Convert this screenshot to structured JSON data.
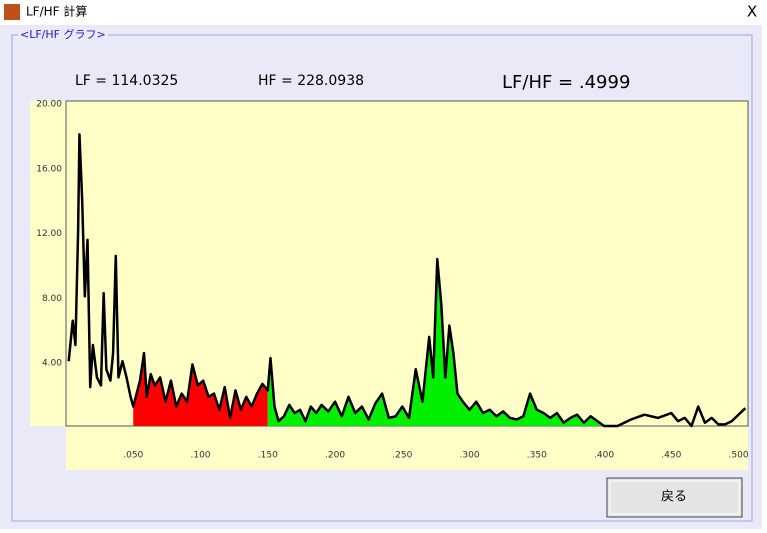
{
  "window": {
    "title": "LF/HF 計算",
    "close": "X"
  },
  "group_label": "<LF/HF グラフ>",
  "lf_text": "LF = 114.0325",
  "hf_text": "HF = 228.0938",
  "ratio_text": "LF/HF = .4999",
  "back_button": "戻る",
  "chart_data": {
    "type": "area",
    "x": [
      0.002,
      0.005,
      0.007,
      0.009,
      0.01,
      0.012,
      0.014,
      0.016,
      0.018,
      0.02,
      0.023,
      0.026,
      0.028,
      0.03,
      0.033,
      0.035,
      0.037,
      0.039,
      0.042,
      0.045,
      0.048,
      0.05,
      0.055,
      0.058,
      0.06,
      0.063,
      0.066,
      0.07,
      0.074,
      0.078,
      0.082,
      0.086,
      0.09,
      0.094,
      0.098,
      0.102,
      0.106,
      0.11,
      0.114,
      0.118,
      0.122,
      0.126,
      0.13,
      0.134,
      0.138,
      0.142,
      0.146,
      0.15,
      0.152,
      0.155,
      0.158,
      0.162,
      0.166,
      0.17,
      0.174,
      0.178,
      0.182,
      0.186,
      0.19,
      0.195,
      0.2,
      0.205,
      0.21,
      0.215,
      0.22,
      0.225,
      0.23,
      0.235,
      0.24,
      0.245,
      0.25,
      0.255,
      0.26,
      0.265,
      0.27,
      0.273,
      0.276,
      0.279,
      0.282,
      0.285,
      0.288,
      0.291,
      0.295,
      0.3,
      0.305,
      0.31,
      0.315,
      0.32,
      0.325,
      0.33,
      0.335,
      0.34,
      0.345,
      0.35,
      0.355,
      0.36,
      0.365,
      0.37,
      0.375,
      0.38,
      0.385,
      0.39,
      0.395,
      0.4,
      0.41,
      0.42,
      0.43,
      0.44,
      0.45,
      0.455,
      0.46,
      0.465,
      0.47,
      0.475,
      0.48,
      0.485,
      0.49,
      0.495,
      0.5,
      0.505
    ],
    "values": [
      4.0,
      6.5,
      5.0,
      12.0,
      18.0,
      14.0,
      8.0,
      11.5,
      2.4,
      5.0,
      3.0,
      2.5,
      8.2,
      3.5,
      2.8,
      4.5,
      10.5,
      3.0,
      4.0,
      3.0,
      1.8,
      1.2,
      2.8,
      4.5,
      1.8,
      3.2,
      2.5,
      3.0,
      1.5,
      2.8,
      1.2,
      2.0,
      1.5,
      3.8,
      2.5,
      2.8,
      1.8,
      2.0,
      1.0,
      2.4,
      0.5,
      2.2,
      1.0,
      1.8,
      1.2,
      2.0,
      2.6,
      2.2,
      4.2,
      1.2,
      0.3,
      0.6,
      1.3,
      0.8,
      1.0,
      0.3,
      1.2,
      0.8,
      1.3,
      0.9,
      1.5,
      0.6,
      1.8,
      0.8,
      1.2,
      0.4,
      1.4,
      2.0,
      0.5,
      0.6,
      1.2,
      0.5,
      3.5,
      1.5,
      5.5,
      3.0,
      10.3,
      7.5,
      3.0,
      6.2,
      4.5,
      2.0,
      1.5,
      1.0,
      1.5,
      0.8,
      1.0,
      0.6,
      0.9,
      0.5,
      0.4,
      0.6,
      2.0,
      1.0,
      0.8,
      0.5,
      0.8,
      0.2,
      0.5,
      0.7,
      0.2,
      0.6,
      0.3,
      0.0,
      0.0,
      0.4,
      0.7,
      0.5,
      0.8,
      0.3,
      0.5,
      0.0,
      1.2,
      0.2,
      0.5,
      0.1,
      0.1,
      0.3,
      0.7,
      1.1
    ],
    "color": "#000000",
    "bands": [
      {
        "from": 0.05,
        "to": 0.15,
        "color": "#ff0000"
      },
      {
        "from": 0.15,
        "to": 0.4,
        "color": "#00ee00"
      }
    ],
    "xlim": [
      0,
      0.507
    ],
    "ylim": [
      0,
      20
    ],
    "xticks": [
      {
        "value": 0.05,
        "label": ".050"
      },
      {
        "value": 0.1,
        "label": ".100"
      },
      {
        "value": 0.15,
        "label": ".150"
      },
      {
        "value": 0.2,
        "label": ".200"
      },
      {
        "value": 0.25,
        "label": ".250"
      },
      {
        "value": 0.3,
        "label": ".300"
      },
      {
        "value": 0.35,
        "label": ".350"
      },
      {
        "value": 0.4,
        "label": ".400"
      },
      {
        "value": 0.45,
        "label": ".450"
      },
      {
        "value": 0.5,
        "label": ".500"
      }
    ],
    "yticks": [
      {
        "value": 4,
        "label": "4.00"
      },
      {
        "value": 8,
        "label": "8.00"
      },
      {
        "value": 12,
        "label": "12.00"
      },
      {
        "value": 16,
        "label": "16.00"
      },
      {
        "value": 20,
        "label": "20.00"
      }
    ]
  }
}
